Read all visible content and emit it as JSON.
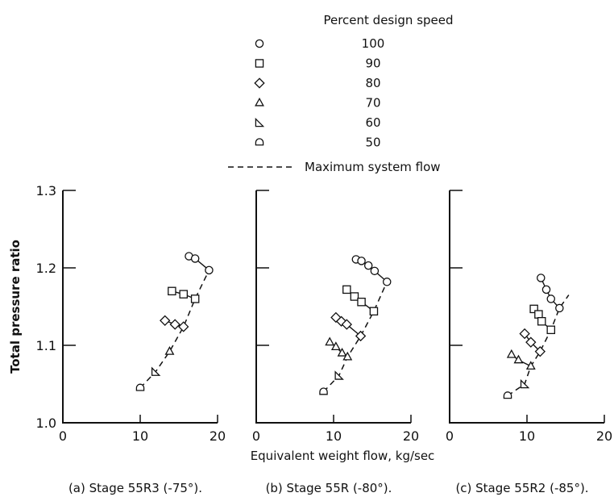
{
  "legend": {
    "title": "Percent design speed",
    "entries": [
      {
        "label": "100",
        "marker": "circle"
      },
      {
        "label": "90",
        "marker": "square"
      },
      {
        "label": "80",
        "marker": "diamond"
      },
      {
        "label": "70",
        "marker": "triangle"
      },
      {
        "label": "60",
        "marker": "right-triangle"
      },
      {
        "label": "50",
        "marker": "half-flat-circle"
      }
    ],
    "line_label": "Maximum system flow"
  },
  "xlabel": "Equivalent weight flow,  kg/sec",
  "ylabel": "Total pressure ratio",
  "chart_data": [
    {
      "type": "line",
      "caption": "(a) Stage 55R3 (-75°).",
      "xlim": [
        0,
        20
      ],
      "ylim": [
        1.0,
        1.3
      ],
      "x_ticks": [
        "0",
        "10",
        "20"
      ],
      "y_ticks": [
        "1.0",
        "1.1",
        "1.2",
        "1.3"
      ],
      "series": [
        {
          "speed": "100",
          "marker": "circle",
          "x": [
            16.3,
            17.1,
            18.9
          ],
          "y": [
            1.215,
            1.212,
            1.197
          ]
        },
        {
          "speed": "90",
          "marker": "square",
          "x": [
            14.1,
            15.6,
            17.1
          ],
          "y": [
            1.17,
            1.166,
            1.16
          ]
        },
        {
          "speed": "80",
          "marker": "diamond",
          "x": [
            13.2,
            14.5,
            15.6
          ],
          "y": [
            1.132,
            1.127,
            1.124
          ]
        },
        {
          "speed": "70",
          "marker": "triangle",
          "x": [
            13.8
          ],
          "y": [
            1.092
          ]
        },
        {
          "speed": "60",
          "marker": "right-triangle",
          "x": [
            12.0
          ],
          "y": [
            1.066
          ]
        },
        {
          "speed": "50",
          "marker": "half-flat-circle",
          "x": [
            10.0
          ],
          "y": [
            1.045
          ]
        }
      ],
      "max_flow_line": {
        "x": [
          10.0,
          12.0,
          13.8,
          15.6,
          17.1,
          18.9
        ],
        "y": [
          1.045,
          1.066,
          1.092,
          1.124,
          1.16,
          1.197
        ]
      }
    },
    {
      "type": "line",
      "caption": "(b) Stage 55R (-80°).",
      "xlim": [
        0,
        20
      ],
      "ylim": [
        1.0,
        1.3
      ],
      "x_ticks": [
        "0",
        "10",
        "20"
      ],
      "y_ticks": [],
      "series": [
        {
          "speed": "100",
          "marker": "circle",
          "x": [
            12.9,
            13.6,
            14.5,
            15.3,
            16.9
          ],
          "y": [
            1.211,
            1.209,
            1.203,
            1.196,
            1.182
          ]
        },
        {
          "speed": "90",
          "marker": "square",
          "x": [
            11.7,
            12.7,
            13.6,
            15.2
          ],
          "y": [
            1.172,
            1.163,
            1.156,
            1.144
          ]
        },
        {
          "speed": "80",
          "marker": "diamond",
          "x": [
            10.3,
            11.0,
            11.7,
            13.5
          ],
          "y": [
            1.136,
            1.131,
            1.127,
            1.112
          ]
        },
        {
          "speed": "70",
          "marker": "triangle",
          "x": [
            9.5,
            10.3,
            11.1,
            11.8
          ],
          "y": [
            1.104,
            1.098,
            1.09,
            1.085
          ]
        },
        {
          "speed": "60",
          "marker": "right-triangle",
          "x": [
            10.7
          ],
          "y": [
            1.061
          ]
        },
        {
          "speed": "50",
          "marker": "half-flat-circle",
          "x": [
            8.7
          ],
          "y": [
            1.04
          ]
        }
      ],
      "max_flow_line": {
        "x": [
          8.7,
          10.7,
          11.8,
          13.5,
          15.2,
          16.9
        ],
        "y": [
          1.04,
          1.061,
          1.085,
          1.112,
          1.144,
          1.182
        ]
      }
    },
    {
      "type": "line",
      "caption": "(c) Stage 55R2 (-85°).",
      "xlim": [
        0,
        20
      ],
      "ylim": [
        1.0,
        1.3
      ],
      "x_ticks": [
        "0",
        "10",
        "20"
      ],
      "y_ticks": [],
      "series": [
        {
          "speed": "100",
          "marker": "circle",
          "x": [
            11.8,
            12.5,
            13.1,
            14.2
          ],
          "y": [
            1.187,
            1.172,
            1.16,
            1.148
          ]
        },
        {
          "speed": "90",
          "marker": "square",
          "x": [
            10.9,
            11.5,
            11.9,
            13.1
          ],
          "y": [
            1.147,
            1.14,
            1.131,
            1.12
          ]
        },
        {
          "speed": "80",
          "marker": "diamond",
          "x": [
            9.7,
            10.5,
            11.7
          ],
          "y": [
            1.115,
            1.104,
            1.092
          ]
        },
        {
          "speed": "70",
          "marker": "triangle",
          "x": [
            8.0,
            8.9,
            10.5
          ],
          "y": [
            1.088,
            1.081,
            1.073
          ]
        },
        {
          "speed": "60",
          "marker": "right-triangle",
          "x": [
            9.7
          ],
          "y": [
            1.05
          ]
        },
        {
          "speed": "50",
          "marker": "half-flat-circle",
          "x": [
            7.5
          ],
          "y": [
            1.035
          ]
        }
      ],
      "max_flow_line": {
        "x": [
          7.5,
          9.7,
          10.5,
          11.7,
          13.1,
          14.2,
          15.4
        ],
        "y": [
          1.035,
          1.05,
          1.073,
          1.092,
          1.12,
          1.148,
          1.165
        ]
      }
    }
  ]
}
